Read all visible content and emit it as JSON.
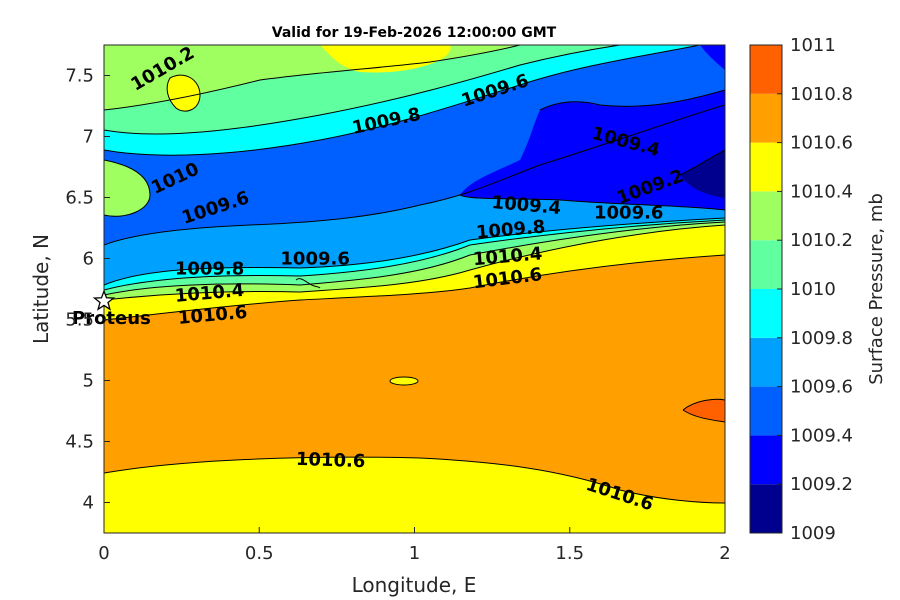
{
  "chart_data": {
    "type": "contour",
    "title": "Valid for 19-Feb-2026 12:00:00 GMT",
    "xlabel": "Longitude, E",
    "ylabel": "Latitude, N",
    "colorbar_label": "Surface Pressure, mb",
    "xlim": [
      0,
      2
    ],
    "ylim": [
      3.75,
      7.75
    ],
    "xticks": [
      "0",
      "0.5",
      "1",
      "1.5",
      "2"
    ],
    "yticks": [
      "4",
      "4.5",
      "5",
      "5.5",
      "6",
      "6.5",
      "7",
      "7.5"
    ],
    "levels": [
      {
        "value": "1009",
        "color": "#00008f"
      },
      {
        "value": "1009.2",
        "color": "#0000ff"
      },
      {
        "value": "1009.4",
        "color": "#0060ff"
      },
      {
        "value": "1009.6",
        "color": "#00a0ff"
      },
      {
        "value": "1009.8",
        "color": "#00ffff"
      },
      {
        "value": "1010",
        "color": "#60ffa0"
      },
      {
        "value": "1010.2",
        "color": "#a0ff60"
      },
      {
        "value": "1010.4",
        "color": "#ffff00"
      },
      {
        "value": "1010.6",
        "color": "#ffa000"
      },
      {
        "value": "1010.8",
        "color": "#ff6000"
      },
      {
        "value": "1011",
        "color": "#ff0000"
      }
    ],
    "contour_labels": [
      {
        "text": "1010.2",
        "x": 0.19,
        "y": 7.55,
        "angle": -30
      },
      {
        "text": "1009.8",
        "x": 0.91,
        "y": 7.12,
        "angle": -12
      },
      {
        "text": "1009.6",
        "x": 1.26,
        "y": 7.37,
        "angle": -18
      },
      {
        "text": "1009.4",
        "x": 1.68,
        "y": 6.95,
        "angle": 15
      },
      {
        "text": "1010",
        "x": 0.23,
        "y": 6.65,
        "angle": -25
      },
      {
        "text": "1009.6",
        "x": 0.36,
        "y": 6.41,
        "angle": -18
      },
      {
        "text": "1009.4",
        "x": 1.36,
        "y": 6.43,
        "angle": 5
      },
      {
        "text": "1009.2",
        "x": 1.76,
        "y": 6.58,
        "angle": -20
      },
      {
        "text": "1009.6",
        "x": 1.69,
        "y": 6.37,
        "angle": 0
      },
      {
        "text": "1009.8",
        "x": 1.31,
        "y": 6.23,
        "angle": -5
      },
      {
        "text": "1010.4",
        "x": 1.3,
        "y": 6.01,
        "angle": -5
      },
      {
        "text": "1010.6",
        "x": 1.3,
        "y": 5.83,
        "angle": -7
      },
      {
        "text": "1009.6",
        "x": 0.68,
        "y": 5.99,
        "angle": 0
      },
      {
        "text": "1009.8",
        "x": 0.34,
        "y": 5.91,
        "angle": 0
      },
      {
        "text": "1010.4",
        "x": 0.34,
        "y": 5.71,
        "angle": -5
      },
      {
        "text": "1010.6",
        "x": 0.35,
        "y": 5.53,
        "angle": -5
      },
      {
        "text": "1010.6",
        "x": 0.73,
        "y": 4.34,
        "angle": 2
      },
      {
        "text": "1010.6",
        "x": 1.66,
        "y": 4.06,
        "angle": 18
      }
    ],
    "markers": [
      {
        "label": "Proteus",
        "x": 0.0,
        "y": 5.65,
        "symbol": "star"
      }
    ]
  }
}
